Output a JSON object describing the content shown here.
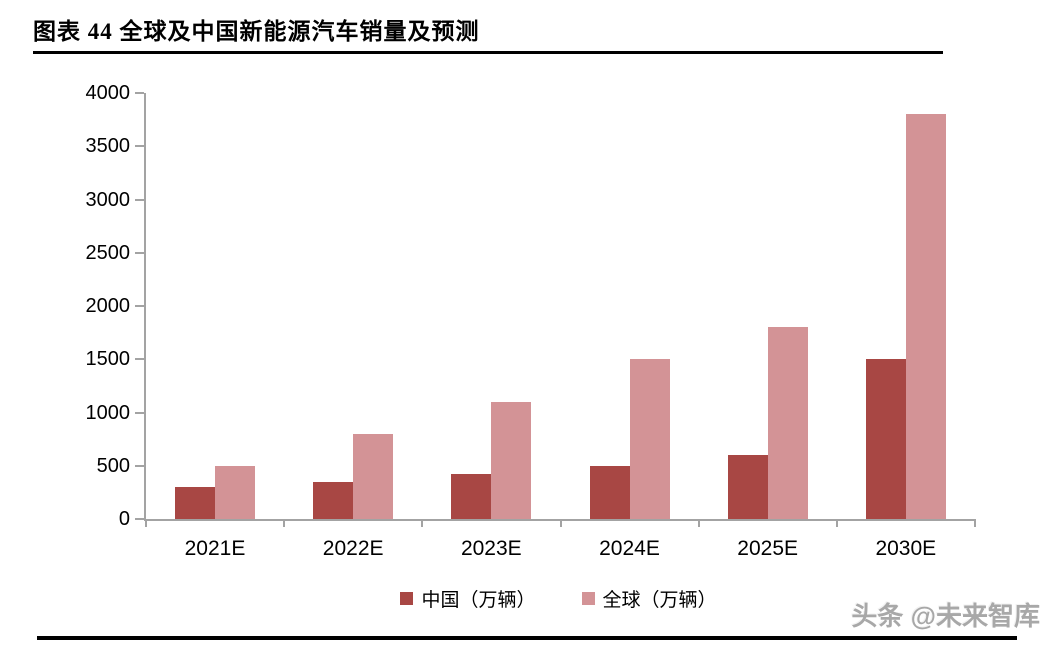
{
  "header": {
    "title": "图表 44 全球及中国新能源汽车销量及预测"
  },
  "watermark": "头条 @未来智库",
  "colors": {
    "china": "#A84744",
    "global": "#D39396",
    "axis": "#A3A3A3",
    "rule": "#000000"
  },
  "chart_data": {
    "type": "bar",
    "categories": [
      "2021E",
      "2022E",
      "2023E",
      "2024E",
      "2025E",
      "2030E"
    ],
    "series": [
      {
        "name": "中国（万辆）",
        "color_key": "china",
        "values": [
          300,
          350,
          420,
          500,
          600,
          1500
        ]
      },
      {
        "name": "全球（万辆）",
        "color_key": "global",
        "values": [
          500,
          800,
          1100,
          1500,
          1800,
          3800
        ]
      }
    ],
    "title": "",
    "xlabel": "",
    "ylabel": "",
    "ylim": [
      0,
      4000
    ],
    "yticks": [
      0,
      500,
      1000,
      1500,
      2000,
      2500,
      3000,
      3500,
      4000
    ],
    "grid": false,
    "legend_position": "bottom"
  }
}
